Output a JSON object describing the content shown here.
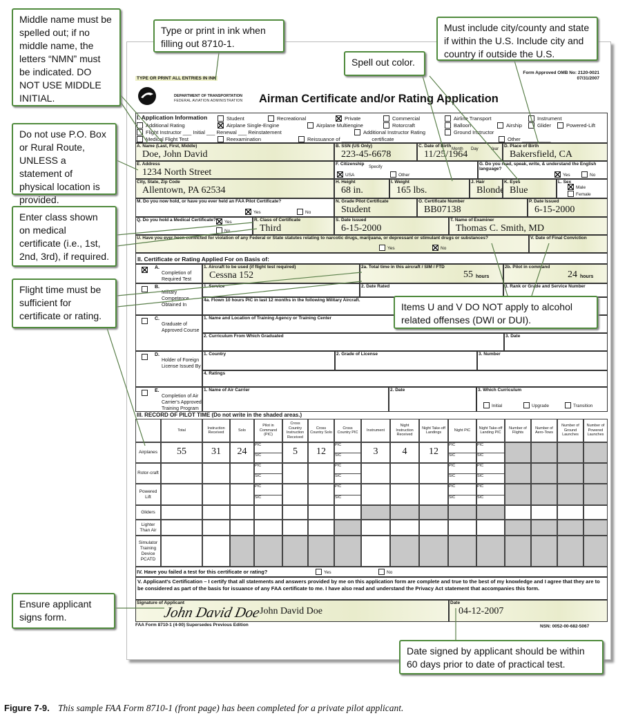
{
  "callouts": [
    "Middle name must be spelled out; if no middle name, the letters “NMN” must be indicated. DO NOT USE MIDDLE INITIAL.",
    "Type or print in ink when filling out 8710-1.",
    "Must include city/county and state if within the U.S. Include city and country if outside the U.S.",
    "Spell out color.",
    "Do not use P.O. Box or Rural Route, UNLESS a statement of physical location is provided.",
    "Enter class shown on medical certificate (i.e., 1st, 2nd, 3rd), if required.",
    "Flight time must be sufficient for certificate or rating.",
    "Items U and V DO NOT apply to alcohol related offenses (DWI or DUI).",
    "Ensure applicant signs form.",
    "Date signed by applicant should be within 60 days prior to date of practical test."
  ],
  "form": {
    "top_note": "TYPE OR PRINT ALL ENTRIES IN INK",
    "omb": "Form Approved OMB No: 2120-0021",
    "omb_date": "07/31/2007",
    "dept": "DEPARTMENT OF TRANSPORTATION",
    "agency": "FEDERAL AVIATION ADMINISTRATION",
    "title": "Airman Certificate and/or Rating Application",
    "section1": {
      "heading": "I. Application Information",
      "options": [
        {
          "label": "Student",
          "checked": false
        },
        {
          "label": "Recreational",
          "checked": false
        },
        {
          "label": "Private",
          "checked": true
        },
        {
          "label": "Commercial",
          "checked": false
        },
        {
          "label": "Airline Transport",
          "checked": false
        },
        {
          "label": "Instrument",
          "checked": false
        },
        {
          "label": "Additional Rating",
          "checked": false
        },
        {
          "label": "Airplane Single-Engine",
          "checked": true
        },
        {
          "label": "Airplane Multiengine",
          "checked": false
        },
        {
          "label": "Rotorcraft",
          "checked": false
        },
        {
          "label": "Balloon",
          "checked": false
        },
        {
          "label": "Airship",
          "checked": false
        },
        {
          "label": "Glider",
          "checked": false
        },
        {
          "label": "Powered-Lift",
          "checked": false
        },
        {
          "label": "Flight Instructor ___ Initial ___ Renewal ___ Reinstatement",
          "checked": false
        },
        {
          "label": "Additional Instructor Rating",
          "checked": false
        },
        {
          "label": "Ground Instructor",
          "checked": false
        },
        {
          "label": "Medical Flight Test",
          "checked": false
        },
        {
          "label": "Reexamination",
          "checked": false
        },
        {
          "label": "Reissuance of __________ certificate",
          "checked": false
        },
        {
          "label": "Other __________",
          "checked": false
        }
      ]
    },
    "fields": [
      {
        "label": "A. Name (Last, First, Middle)",
        "value": "Doe, John David"
      },
      {
        "label": "B. SSN (US Only)",
        "value": "223-45-6678"
      },
      {
        "label": "C. Date of Birth",
        "value": "11/25/1964",
        "sub": [
          "Month",
          "Day",
          "Year"
        ]
      },
      {
        "label": "D. Place of Birth",
        "value": "Bakersfield, CA"
      },
      {
        "label": "E. Address",
        "value": "1234 North Street"
      },
      {
        "label": "F. Citizenship",
        "sub": [
          "Specify"
        ]
      },
      {
        "label": "G. Do you read, speak, write, & understand the English language?"
      },
      {
        "label": "City, State, Zip Code",
        "value": "Allentown, PA 62534"
      },
      {
        "label": "H. Height",
        "value": "68 in."
      },
      {
        "label": "I. Weight",
        "value": "165 lbs."
      },
      {
        "label": "J. Hair",
        "value": "Blonde"
      },
      {
        "label": "K. Eyes",
        "value": "Blue"
      },
      {
        "label": "L. Sex"
      },
      {
        "label": "M. Do you now hold, or have you ever held an FAA Pilot Certificate?"
      },
      {
        "label": "N. Grade Pilot Certificate",
        "value": "Student"
      },
      {
        "label": "O. Certificate Number",
        "value": "BB07138"
      },
      {
        "label": "P. Date Issued",
        "value": "6-15-2000"
      },
      {
        "label": "Q. Do you hold a Medical Certificate?"
      },
      {
        "label": "R. Class of Certificate",
        "value": "Third"
      },
      {
        "label": "S. Date Issued",
        "value": "6-15-2000"
      },
      {
        "label": "T. Name of Examiner",
        "value": "Thomas C. Smith, MD"
      },
      {
        "label": "U. Have you ever been convicted for violation of any Federal or State statutes relating to narcotic drugs, marijuana, or depressant or stimulant drugs or substances?"
      },
      {
        "label": "V. Date of Final Conviction"
      },
      {
        "label": "1. Aircraft to be used (if flight test required)",
        "value": "Cessna 152"
      },
      {
        "label": "2a. Total time in this aircraft / SIM / FTD",
        "value": 55,
        "unit": "hours"
      },
      {
        "label": "2b. Pilot in command",
        "value": 24,
        "unit": "hours"
      },
      {
        "label": "1. Service"
      },
      {
        "label": "2. Date Rated"
      },
      {
        "label": "3. Rank or Grade and Service Number"
      },
      {
        "label": "4a. Flown 10 hours PIC in last 12 months in the following Military Aircraft."
      },
      {
        "label": "1. Name and Location of Training Agency or Training Center"
      },
      {
        "label": "2. Curriculum From Which Graduated"
      },
      {
        "label": "3. Date"
      },
      {
        "label": "1. Country"
      },
      {
        "label": "2. Grade of License"
      },
      {
        "label": "3. Number"
      },
      {
        "label": "4. Ratings"
      },
      {
        "label": "1. Name of Air Carrier"
      },
      {
        "label": "2. Date"
      },
      {
        "label": "3. Which Curriculum"
      }
    ],
    "checkboxes": [
      {
        "label": "USA",
        "checked": true
      },
      {
        "label": "Other",
        "checked": false
      },
      {
        "label": "Yes",
        "checked": true
      },
      {
        "label": "No",
        "checked": false
      },
      {
        "label": "Male",
        "checked": true
      },
      {
        "label": "Female",
        "checked": false
      },
      {
        "label": "Yes",
        "checked": true
      },
      {
        "label": "No",
        "checked": false
      },
      {
        "label": "Yes",
        "checked": true
      },
      {
        "label": "No",
        "checked": false
      },
      {
        "label": "Yes",
        "checked": false
      },
      {
        "label": "No",
        "checked": true
      },
      {
        "label": "Initial",
        "checked": false
      },
      {
        "label": "Upgrade",
        "checked": false
      },
      {
        "label": "Transition",
        "checked": false
      },
      {
        "label": "Yes",
        "checked": false
      },
      {
        "label": "No",
        "checked": false
      }
    ],
    "section2": {
      "heading": "II. Certificate or Rating Applied For on Basis of:",
      "bases": [
        {
          "letter": "A.",
          "label": "Completion of Required Test",
          "checked": true
        },
        {
          "letter": "B.",
          "label": "Military Competence Obtained In",
          "checked": false
        },
        {
          "letter": "C.",
          "label": "Graduate of Approved Course",
          "checked": false
        },
        {
          "letter": "D.",
          "label": "Holder of Foreign License Issued By",
          "checked": false
        },
        {
          "letter": "E.",
          "label": "Completion of Air Carrier's Approved Training Program",
          "checked": false
        }
      ]
    },
    "table": {
      "heading": "III. RECORD OF PILOT TIME (Do not write in the shaded areas.)",
      "columns": [
        "Total",
        "Instruction Received",
        "Solo",
        "Pilot in Command (PIC)",
        "Cross Country Instruction Received",
        "Cross Country Solo",
        "Cross Country PIC",
        "Instrument",
        "Night Instruction Received",
        "Night Take-off Landings",
        "Night PIC",
        "Night Take-off Landing PIC",
        "Number of Flights",
        "Number of Aero-Tows",
        "Number of Ground Launches",
        "Number of Powered Launches"
      ],
      "pic_label": "PIC",
      "sic_label": "SIC",
      "rows": [
        {
          "label": "Airplanes",
          "cells": [
            55,
            31,
            24,
            null,
            5,
            12,
            null,
            3,
            4,
            12,
            null,
            null,
            null,
            null,
            null,
            null
          ]
        },
        {
          "label": "Rotor-craft",
          "cells": [
            null,
            null,
            null,
            null,
            null,
            null,
            null,
            null,
            null,
            null,
            null,
            null,
            null,
            null,
            null,
            null
          ]
        },
        {
          "label": "Powered Lift",
          "cells": [
            null,
            null,
            null,
            null,
            null,
            null,
            null,
            null,
            null,
            null,
            null,
            null,
            null,
            null,
            null,
            null
          ]
        },
        {
          "label": "Gliders",
          "cells": [
            null,
            null,
            null,
            null,
            null,
            null,
            null,
            null,
            null,
            null,
            null,
            null,
            null,
            null,
            null,
            null
          ]
        },
        {
          "label": "Lighter Than Air",
          "cells": [
            null,
            null,
            null,
            null,
            null,
            null,
            null,
            null,
            null,
            null,
            null,
            null,
            null,
            null,
            null,
            null
          ]
        },
        {
          "label": "Simulator Training Device PCATD",
          "cells": [
            null,
            null,
            null,
            null,
            null,
            null,
            null,
            null,
            null,
            null,
            null,
            null,
            null,
            null,
            null,
            null
          ]
        }
      ]
    },
    "section4": "IV. Have you failed a test for this certificate or rating?",
    "section5": "V. Applicant's Certification – I certify that all statements and answers provided by me on this application form are complete and true to the best of my knowledge and I agree that they are to be considered as part of the basis for issuance of any FAA certificate to me. I have also read and understand the Privacy Act statement that accompanies this form.",
    "signature_label": "Signature of Applicant",
    "signature": "John David Doe",
    "printed_name": "John David Doe",
    "date_label": "Date",
    "date": "04-12-2007",
    "footer_left": "FAA Form 8710-1 (4-00) Supersedes Previous Edition",
    "footer_right": "NSN: 0052-00-682-5067"
  },
  "caption": {
    "figure": "Figure 7-9.",
    "text": "This sample FAA Form 8710-1 (front page) has been completed for a private pilot applicant."
  }
}
